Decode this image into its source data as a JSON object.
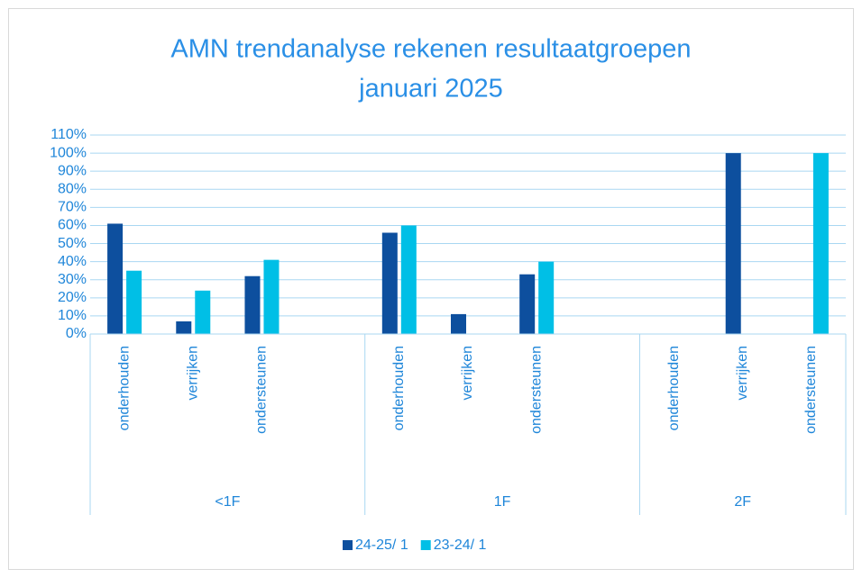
{
  "chart_data": {
    "type": "bar",
    "title": [
      "AMN trendanalyse rekenen resultaatgroepen",
      "januari 2025"
    ],
    "groups": [
      {
        "label": "<1F",
        "categories": [
          "onderhouden",
          "verrijken",
          "ondersteunen",
          null
        ]
      },
      {
        "label": "1F",
        "categories": [
          "onderhouden",
          "verrijken",
          "ondersteunen",
          null
        ]
      },
      {
        "label": "2F",
        "categories": [
          "onderhouden",
          "verrijken",
          "ondersteunen"
        ]
      }
    ],
    "series": [
      {
        "name": "24-25/ 1",
        "color": "#0d4f9e",
        "values": [
          61,
          7,
          32,
          null,
          56,
          11,
          33,
          null,
          0,
          100,
          0
        ]
      },
      {
        "name": "23-24/ 1",
        "color": "#00bfe6",
        "values": [
          35,
          24,
          41,
          null,
          60,
          0,
          40,
          null,
          0,
          0,
          100
        ]
      }
    ],
    "ylim": [
      0,
      110
    ],
    "yticks": [
      {
        "value": 0,
        "label": "0%"
      },
      {
        "value": 10,
        "label": "10%"
      },
      {
        "value": 20,
        "label": "20%"
      },
      {
        "value": 30,
        "label": "30%"
      },
      {
        "value": 40,
        "label": "40%"
      },
      {
        "value": 50,
        "label": "50%"
      },
      {
        "value": 60,
        "label": "60%"
      },
      {
        "value": 70,
        "label": "70%"
      },
      {
        "value": 80,
        "label": "80%"
      },
      {
        "value": 90,
        "label": "90%"
      },
      {
        "value": 100,
        "label": "100%"
      },
      {
        "value": 110,
        "label": "110%"
      }
    ],
    "grid": true,
    "legend": "bottom"
  }
}
